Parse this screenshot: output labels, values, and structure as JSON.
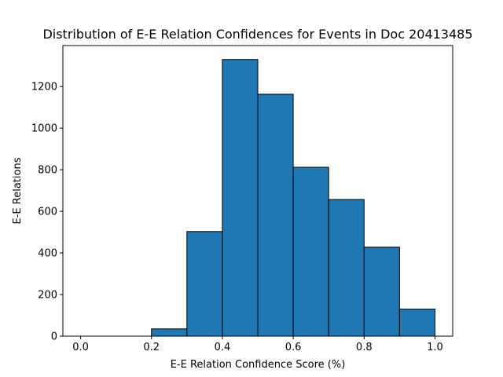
{
  "chart_data": {
    "type": "bar",
    "title": "Distribution of E-E Relation Confidences for Events in Doc 20413485",
    "xlabel": "E-E Relation Confidence Score (%)",
    "ylabel": "E-E Relations",
    "bins": [
      {
        "start": 0.0,
        "end": 0.1,
        "value": 0
      },
      {
        "start": 0.1,
        "end": 0.2,
        "value": 0
      },
      {
        "start": 0.2,
        "end": 0.3,
        "value": 35
      },
      {
        "start": 0.3,
        "end": 0.4,
        "value": 503
      },
      {
        "start": 0.4,
        "end": 0.5,
        "value": 1330
      },
      {
        "start": 0.5,
        "end": 0.6,
        "value": 1163
      },
      {
        "start": 0.6,
        "end": 0.7,
        "value": 812
      },
      {
        "start": 0.7,
        "end": 0.8,
        "value": 657
      },
      {
        "start": 0.8,
        "end": 0.9,
        "value": 428
      },
      {
        "start": 0.9,
        "end": 1.0,
        "value": 130
      }
    ],
    "xlim": [
      -0.05,
      1.05
    ],
    "ylim": [
      0,
      1397
    ],
    "xticks": [
      0.0,
      0.2,
      0.4,
      0.6,
      0.8,
      1.0
    ],
    "xtick_labels": [
      "0.0",
      "0.2",
      "0.4",
      "0.6",
      "0.8",
      "1.0"
    ],
    "yticks": [
      0,
      200,
      400,
      600,
      800,
      1000,
      1200
    ],
    "ytick_labels": [
      "0",
      "200",
      "400",
      "600",
      "800",
      "1000",
      "1200"
    ],
    "grid": false,
    "bar_color": "#1f77b4",
    "edge_color": "#000000"
  }
}
